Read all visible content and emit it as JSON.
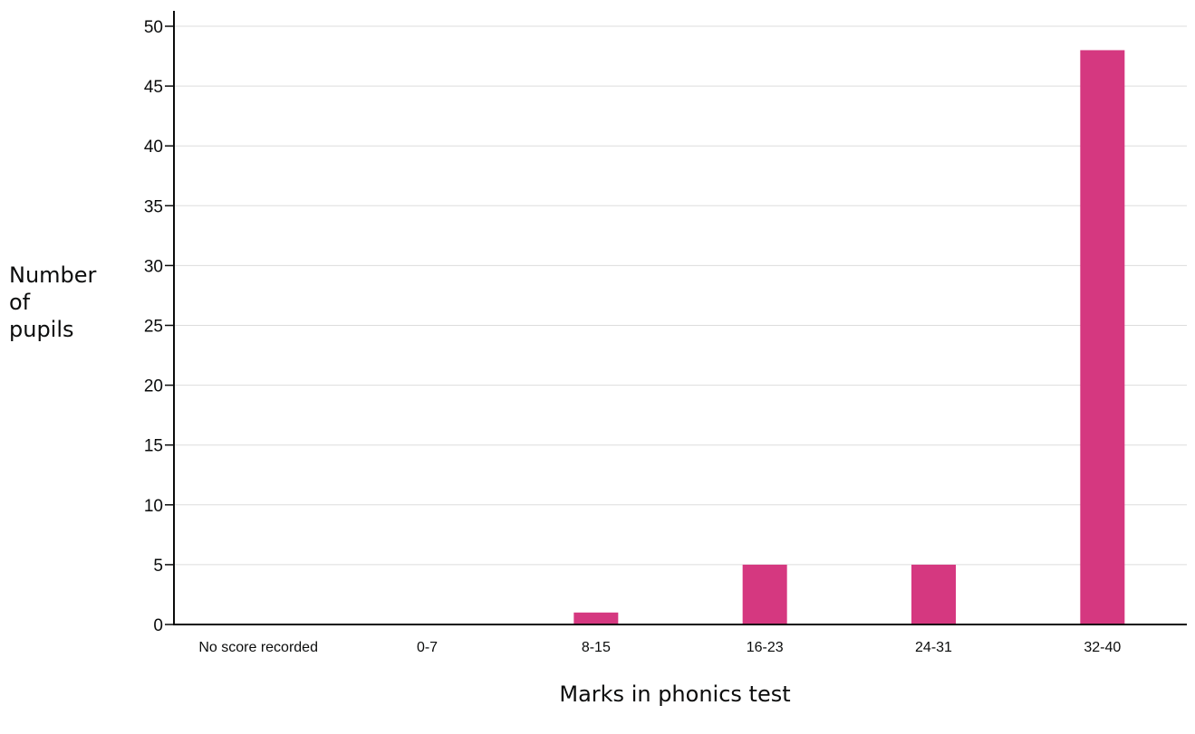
{
  "chart_data": {
    "type": "bar",
    "categories": [
      "No score recorded",
      "0-7",
      "8-15",
      "16-23",
      "24-31",
      "32-40"
    ],
    "values": [
      0,
      0,
      1,
      5,
      5,
      48
    ],
    "xlabel": "Marks in phonics test",
    "ylabel": [
      "Number",
      "of",
      "pupils"
    ],
    "ylim": [
      0,
      50
    ],
    "yticks": [
      0,
      5,
      10,
      15,
      20,
      25,
      30,
      35,
      40,
      45,
      50
    ],
    "grid": true,
    "legend": "none",
    "bar_color": "#d53880"
  }
}
